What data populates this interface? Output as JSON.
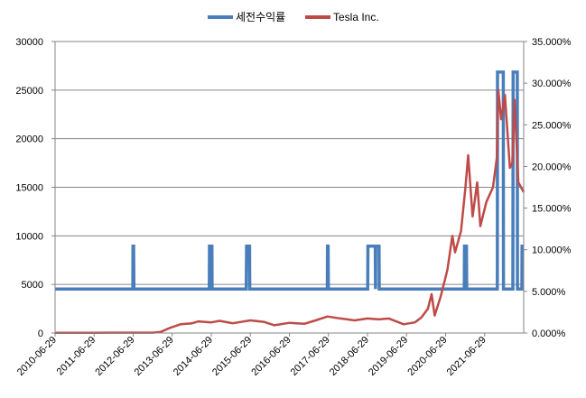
{
  "chart_data": {
    "type": "line",
    "title": "",
    "legend_position": "top",
    "grid": true,
    "colors": {
      "setax": "#4a7ebb",
      "tesla": "#be4b48",
      "grid": "#868686",
      "axis": "#868686"
    },
    "legend": [
      {
        "label": "세전수익률",
        "color": "#4a7ebb"
      },
      {
        "label": "Tesla Inc.",
        "color": "#be4b48"
      }
    ],
    "y_left": {
      "min": 0,
      "max": 30000,
      "ticks": [
        "0",
        "5000",
        "10000",
        "15000",
        "20000",
        "25000",
        "30000"
      ]
    },
    "y_right": {
      "min": 0,
      "max": 0.35,
      "ticks": [
        "0.000%",
        "5.000%",
        "10.000%",
        "15.000%",
        "20.000%",
        "25.000%",
        "30.000%",
        "35.000%"
      ]
    },
    "x": {
      "start": "2010-06-29",
      "end": "2022-06-29",
      "ticks": [
        "2010-06-29",
        "2011-06-29",
        "2012-06-29",
        "2013-06-29",
        "2014-06-29",
        "2015-06-29",
        "2016-06-29",
        "2017-06-29",
        "2018-06-29",
        "2019-06-29",
        "2020-06-29",
        "2021-06-29"
      ]
    },
    "series": [
      {
        "name": "Tesla Inc.",
        "axis": "left",
        "points": [
          [
            "2010-06-29",
            20
          ],
          [
            "2011-06-29",
            30
          ],
          [
            "2012-06-29",
            35
          ],
          [
            "2012-12-29",
            40
          ],
          [
            "2013-03-15",
            120
          ],
          [
            "2013-06-01",
            500
          ],
          [
            "2013-09-15",
            900
          ],
          [
            "2014-01-01",
            1000
          ],
          [
            "2014-03-01",
            1200
          ],
          [
            "2014-06-29",
            1100
          ],
          [
            "2014-09-15",
            1250
          ],
          [
            "2015-01-15",
            1000
          ],
          [
            "2015-06-29",
            1300
          ],
          [
            "2015-11-01",
            1150
          ],
          [
            "2016-02-10",
            800
          ],
          [
            "2016-06-29",
            1050
          ],
          [
            "2016-11-15",
            950
          ],
          [
            "2017-03-01",
            1300
          ],
          [
            "2017-06-20",
            1700
          ],
          [
            "2017-09-15",
            1550
          ],
          [
            "2018-03-01",
            1300
          ],
          [
            "2018-06-29",
            1500
          ],
          [
            "2018-10-15",
            1400
          ],
          [
            "2019-01-15",
            1500
          ],
          [
            "2019-06-03",
            900
          ],
          [
            "2019-09-15",
            1100
          ],
          [
            "2019-11-15",
            1600
          ],
          [
            "2020-01-15",
            2500
          ],
          [
            "2020-02-19",
            4000
          ],
          [
            "2020-03-18",
            1800
          ],
          [
            "2020-05-15",
            3800
          ],
          [
            "2020-07-15",
            6500
          ],
          [
            "2020-08-31",
            10000
          ],
          [
            "2020-09-25",
            8300
          ],
          [
            "2020-11-20",
            10500
          ],
          [
            "2020-12-31",
            15000
          ],
          [
            "2021-01-26",
            18300
          ],
          [
            "2021-03-08",
            12000
          ],
          [
            "2021-04-20",
            15500
          ],
          [
            "2021-05-20",
            11000
          ],
          [
            "2021-07-15",
            13500
          ],
          [
            "2021-09-15",
            15000
          ],
          [
            "2021-10-20",
            18000
          ],
          [
            "2021-11-04",
            25000
          ],
          [
            "2021-11-30",
            22000
          ],
          [
            "2022-01-04",
            24500
          ],
          [
            "2022-02-20",
            17000
          ],
          [
            "2022-03-15",
            17500
          ],
          [
            "2022-04-04",
            24000
          ],
          [
            "2022-05-10",
            15500
          ],
          [
            "2022-06-29",
            14500
          ]
        ]
      },
      {
        "name": "세전수익률",
        "axis": "right",
        "step": true,
        "points": [
          [
            "2010-06-29",
            0.05275
          ],
          [
            "2012-06-25",
            0.05275
          ],
          [
            "2012-06-27",
            0.10435
          ],
          [
            "2012-07-03",
            0.10435
          ],
          [
            "2012-07-05",
            0.05275
          ],
          [
            "2014-06-10",
            0.05275
          ],
          [
            "2014-06-12",
            0.10435
          ],
          [
            "2014-07-05",
            0.10435
          ],
          [
            "2014-07-07",
            0.05275
          ],
          [
            "2015-05-22",
            0.05275
          ],
          [
            "2015-05-25",
            0.10435
          ],
          [
            "2015-06-22",
            0.10435
          ],
          [
            "2015-06-24",
            0.05275
          ],
          [
            "2017-06-18",
            0.05275
          ],
          [
            "2017-06-20",
            0.10435
          ],
          [
            "2017-06-26",
            0.10435
          ],
          [
            "2017-06-28",
            0.05275
          ],
          [
            "2018-07-01",
            0.05275
          ],
          [
            "2018-07-03",
            0.10435
          ],
          [
            "2018-09-10",
            0.10435
          ],
          [
            "2018-09-12",
            0.05275
          ],
          [
            "2018-09-14",
            0.10435
          ],
          [
            "2018-10-15",
            0.10435
          ],
          [
            "2018-10-17",
            0.05275
          ],
          [
            "2020-12-20",
            0.05275
          ],
          [
            "2020-12-22",
            0.10435
          ],
          [
            "2021-01-10",
            0.10435
          ],
          [
            "2021-01-12",
            0.05275
          ],
          [
            "2021-10-25",
            0.05275
          ],
          [
            "2021-10-27",
            0.31325
          ],
          [
            "2021-12-20",
            0.31325
          ],
          [
            "2021-12-22",
            0.05275
          ],
          [
            "2022-03-20",
            0.05275
          ],
          [
            "2022-03-22",
            0.31325
          ],
          [
            "2022-04-30",
            0.31325
          ],
          [
            "2022-05-02",
            0.05275
          ],
          [
            "2022-06-12",
            0.05275
          ],
          [
            "2022-06-14",
            0.10435
          ],
          [
            "2022-06-29",
            0.10435
          ]
        ]
      }
    ]
  }
}
